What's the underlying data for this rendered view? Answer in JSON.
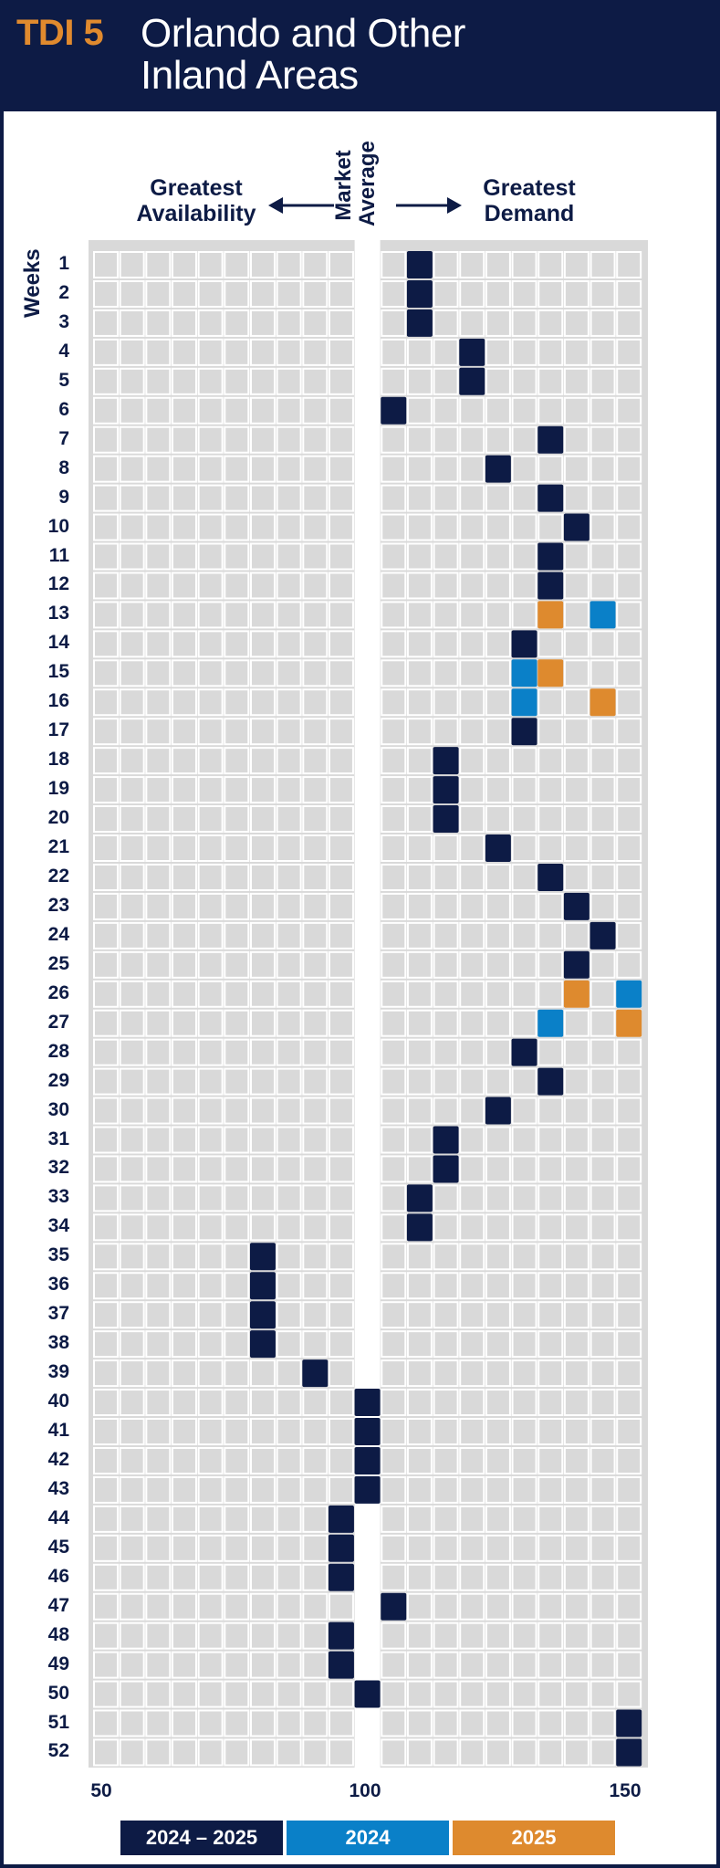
{
  "header": {
    "tdi_label": "TDI 5",
    "title_line1": "Orlando and Other",
    "title_line2": "Inland Areas"
  },
  "directions": {
    "left_line1": "Greatest",
    "left_line2": "Availability",
    "center_line1": "Market",
    "center_line2": "Average",
    "right_line1": "Greatest",
    "right_line2": "Demand"
  },
  "colors": {
    "navy": "#0d1b45",
    "blue": "#0a80c8",
    "orange": "#de8a2e",
    "cell": "#d9d9d9",
    "grid_bg": "#d9d9d9"
  },
  "chart_data": {
    "type": "heatmap",
    "ylabel": "Weeks",
    "xlim": [
      50,
      150
    ],
    "x_ticks": [
      50,
      100,
      150
    ],
    "x_step": 5,
    "weeks": [
      1,
      2,
      3,
      4,
      5,
      6,
      7,
      8,
      9,
      10,
      11,
      12,
      13,
      14,
      15,
      16,
      17,
      18,
      19,
      20,
      21,
      22,
      23,
      24,
      25,
      26,
      27,
      28,
      29,
      30,
      31,
      32,
      33,
      34,
      35,
      36,
      37,
      38,
      39,
      40,
      41,
      42,
      43,
      44,
      45,
      46,
      47,
      48,
      49,
      50,
      51,
      52
    ],
    "legend": [
      {
        "label": "2024 – 2025",
        "color": "#0d1b45"
      },
      {
        "label": "2024",
        "color": "#0a80c8"
      },
      {
        "label": "2025",
        "color": "#de8a2e"
      }
    ],
    "series": [
      {
        "name": "2024 – 2025",
        "color": "#0d1b45",
        "points": [
          {
            "week": 1,
            "value": 110
          },
          {
            "week": 2,
            "value": 110
          },
          {
            "week": 3,
            "value": 110
          },
          {
            "week": 4,
            "value": 120
          },
          {
            "week": 5,
            "value": 120
          },
          {
            "week": 6,
            "value": 105
          },
          {
            "week": 7,
            "value": 135
          },
          {
            "week": 8,
            "value": 125
          },
          {
            "week": 9,
            "value": 135
          },
          {
            "week": 10,
            "value": 140
          },
          {
            "week": 11,
            "value": 135
          },
          {
            "week": 12,
            "value": 135
          },
          {
            "week": 14,
            "value": 130
          },
          {
            "week": 17,
            "value": 130
          },
          {
            "week": 18,
            "value": 115
          },
          {
            "week": 19,
            "value": 115
          },
          {
            "week": 20,
            "value": 115
          },
          {
            "week": 21,
            "value": 125
          },
          {
            "week": 22,
            "value": 135
          },
          {
            "week": 23,
            "value": 140
          },
          {
            "week": 24,
            "value": 145
          },
          {
            "week": 25,
            "value": 140
          },
          {
            "week": 28,
            "value": 130
          },
          {
            "week": 29,
            "value": 135
          },
          {
            "week": 30,
            "value": 125
          },
          {
            "week": 31,
            "value": 115
          },
          {
            "week": 32,
            "value": 115
          },
          {
            "week": 33,
            "value": 110
          },
          {
            "week": 34,
            "value": 110
          },
          {
            "week": 35,
            "value": 80
          },
          {
            "week": 36,
            "value": 80
          },
          {
            "week": 37,
            "value": 80
          },
          {
            "week": 38,
            "value": 80
          },
          {
            "week": 39,
            "value": 90
          },
          {
            "week": 40,
            "value": 100
          },
          {
            "week": 41,
            "value": 100
          },
          {
            "week": 42,
            "value": 100
          },
          {
            "week": 43,
            "value": 100
          },
          {
            "week": 44,
            "value": 95
          },
          {
            "week": 45,
            "value": 95
          },
          {
            "week": 46,
            "value": 95
          },
          {
            "week": 47,
            "value": 105
          },
          {
            "week": 48,
            "value": 95
          },
          {
            "week": 49,
            "value": 95
          },
          {
            "week": 50,
            "value": 100
          },
          {
            "week": 51,
            "value": 150
          },
          {
            "week": 52,
            "value": 150
          }
        ]
      },
      {
        "name": "2024",
        "color": "#0a80c8",
        "points": [
          {
            "week": 13,
            "value": 145
          },
          {
            "week": 15,
            "value": 130
          },
          {
            "week": 16,
            "value": 130
          },
          {
            "week": 26,
            "value": 150
          },
          {
            "week": 27,
            "value": 135
          }
        ]
      },
      {
        "name": "2025",
        "color": "#de8a2e",
        "points": [
          {
            "week": 13,
            "value": 135
          },
          {
            "week": 15,
            "value": 135
          },
          {
            "week": 16,
            "value": 145
          },
          {
            "week": 26,
            "value": 140
          },
          {
            "week": 27,
            "value": 150
          }
        ]
      }
    ]
  }
}
